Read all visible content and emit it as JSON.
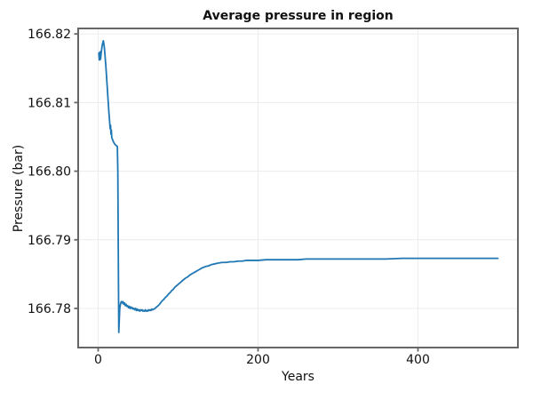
{
  "figure": {
    "title": "Average pressure in region",
    "x_axis_label": "Years",
    "y_axis_label": "Pressure (bar)"
  },
  "style": {
    "line_color": "#1f77b4",
    "spine_color": "#666666",
    "grid_color": "#ececec",
    "text_color": "#111111",
    "background_color": "#ffffff"
  },
  "chart_data": {
    "type": "line",
    "title": "Average pressure in region",
    "xlabel": "Years",
    "ylabel": "Pressure (bar)",
    "grid": true,
    "legend_position": "none",
    "xlim": [
      -25,
      525
    ],
    "ylim": [
      166.7743,
      166.8208
    ],
    "xticks": [
      0,
      200,
      400
    ],
    "xtick_labels": [
      "0",
      "200",
      "400"
    ],
    "yticks": [
      166.78,
      166.79,
      166.8,
      166.81,
      166.82
    ],
    "ytick_labels": [
      "166.78",
      "166.79",
      "166.80",
      "166.81",
      "166.82"
    ],
    "series": [
      {
        "name": "average-pressure",
        "color": "#1f77b4",
        "x": [
          0.8,
          1.5,
          2.2,
          3,
          3.6,
          4.5,
          5.5,
          6.5,
          7.5,
          8.5,
          9.5,
          10.5,
          11.5,
          12.5,
          13.5,
          14.5,
          15,
          15.5,
          16,
          16.5,
          17,
          18,
          19,
          20,
          21,
          22,
          23,
          24,
          24.6,
          25,
          25.4,
          25.8,
          26.4,
          27,
          28,
          29,
          30,
          31,
          32,
          33,
          34,
          35,
          36,
          37,
          38,
          39,
          40,
          41,
          42,
          43,
          44,
          45,
          46,
          47,
          48,
          49,
          50,
          51,
          52,
          53,
          54,
          55,
          56,
          57,
          58,
          59,
          60,
          61,
          62,
          63,
          64,
          65,
          66,
          67,
          68,
          69,
          70,
          72,
          74,
          76,
          78,
          80,
          82,
          84,
          86,
          88,
          90,
          92,
          94,
          96,
          98,
          100,
          103,
          106,
          109,
          112,
          115,
          118,
          121,
          124,
          127,
          130,
          134,
          138,
          142,
          146,
          150,
          155,
          160,
          165,
          170,
          175,
          180,
          185,
          190,
          200,
          210,
          220,
          230,
          240,
          250,
          260,
          280,
          300,
          320,
          340,
          360,
          380,
          400,
          420,
          440,
          460,
          480,
          500
        ],
        "y": [
          166.8172,
          166.8162,
          166.8174,
          166.8163,
          166.817,
          166.8179,
          166.8186,
          166.819,
          166.8183,
          166.817,
          166.8155,
          166.8138,
          166.812,
          166.8102,
          166.8085,
          166.807,
          166.8062,
          166.8067,
          166.8054,
          166.806,
          166.8049,
          166.8046,
          166.8043,
          166.8041,
          166.8039,
          166.8038,
          166.8037,
          166.8036,
          166.8,
          166.792,
          166.784,
          166.7765,
          166.7783,
          166.78,
          166.7807,
          166.781,
          166.7808,
          166.781,
          166.7806,
          166.7808,
          166.7804,
          166.7806,
          166.7803,
          166.7804,
          166.7801,
          166.7803,
          166.78,
          166.7802,
          166.78,
          166.7801,
          166.7799,
          166.78,
          166.7798,
          166.78,
          166.7797,
          166.7799,
          166.7797,
          166.7798,
          166.7796,
          166.7798,
          166.7797,
          166.7798,
          166.7796,
          166.7797,
          166.7796,
          166.7798,
          166.7796,
          166.7797,
          166.7796,
          166.7798,
          166.7797,
          166.7798,
          166.7797,
          166.7799,
          166.7798,
          166.7799,
          166.7799,
          166.7801,
          166.7803,
          166.7805,
          166.7808,
          166.7811,
          166.7813,
          166.7816,
          166.7818,
          166.7821,
          166.7823,
          166.7826,
          166.7828,
          166.7831,
          166.7833,
          166.7835,
          166.7838,
          166.7841,
          166.7844,
          166.7846,
          166.7849,
          166.7851,
          166.7853,
          166.7855,
          166.7857,
          166.7859,
          166.7861,
          166.7862,
          166.7864,
          166.7865,
          166.7866,
          166.7867,
          166.7867,
          166.7868,
          166.7868,
          166.7869,
          166.7869,
          166.787,
          166.787,
          166.787,
          166.7871,
          166.7871,
          166.7871,
          166.7871,
          166.7871,
          166.7872,
          166.7872,
          166.7872,
          166.7872,
          166.7872,
          166.7872,
          166.7873,
          166.7873,
          166.7873,
          166.7873,
          166.7873,
          166.7873,
          166.7873
        ]
      }
    ]
  }
}
